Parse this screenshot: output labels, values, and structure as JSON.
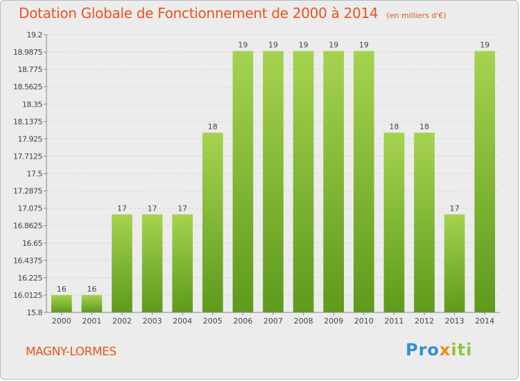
{
  "header": {
    "title": "Dotation Globale de Fonctionnement de 2000 à 2014",
    "unit": "(en milliers d'€)"
  },
  "footer": {
    "commune": "MAGNY-LORMES",
    "logo": {
      "part1": "Pro",
      "part2": "x",
      "part3": "iti"
    }
  },
  "colors": {
    "bar": "#7fba32",
    "title": "#e8541a"
  },
  "chart_data": {
    "type": "bar",
    "title": "Dotation Globale de Fonctionnement de 2000 à 2014",
    "subtitle": "(en milliers d'€)",
    "xlabel": "",
    "ylabel": "",
    "categories": [
      "2000",
      "2001",
      "2002",
      "2003",
      "2004",
      "2005",
      "2006",
      "2007",
      "2008",
      "2009",
      "2010",
      "2011",
      "2012",
      "2013",
      "2014"
    ],
    "values": [
      16,
      16,
      17,
      17,
      17,
      18,
      19,
      19,
      19,
      19,
      19,
      18,
      18,
      17,
      19
    ],
    "display_values": [
      16.0125,
      16.0125,
      17,
      17,
      17,
      18,
      19,
      19,
      19,
      19,
      19,
      18,
      18,
      17,
      19
    ],
    "yticks": [
      "15.8",
      "16.0125",
      "16.225",
      "16.4375",
      "16.65",
      "16.8625",
      "17.075",
      "17.2875",
      "17.5",
      "17.7125",
      "17.925",
      "18.1375",
      "18.35",
      "18.5625",
      "18.775",
      "18.9875",
      "19.2"
    ],
    "ylim": [
      15.8,
      19.2
    ],
    "grid": true,
    "legend": "none"
  }
}
